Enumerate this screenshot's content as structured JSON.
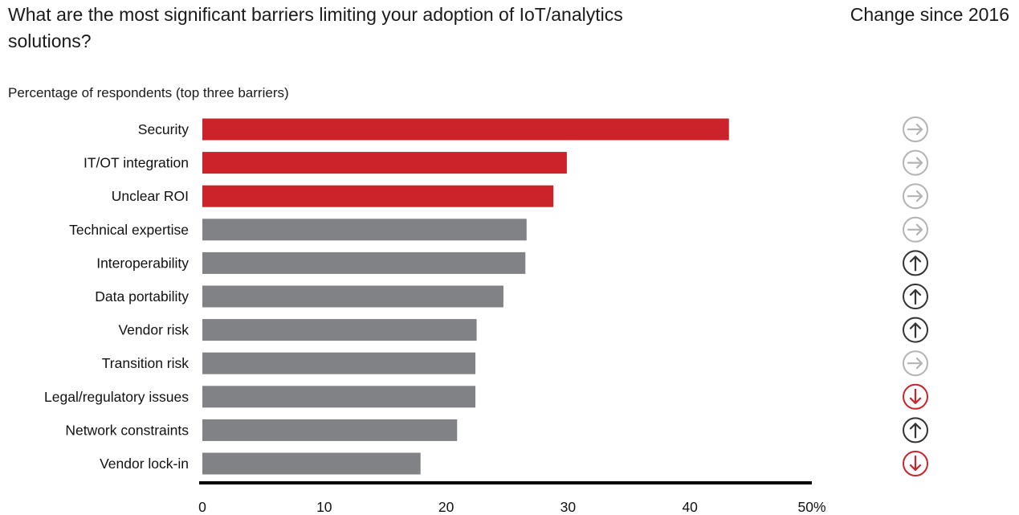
{
  "title": "What are the most significant barriers limiting your adoption of IoT/analytics solutions?",
  "change_title": "Change since 2016",
  "subtitle": "Percentage of respondents (top three barriers)",
  "colors": {
    "highlight": "#cc2229",
    "default": "#808285",
    "axis": "#000000",
    "icon_neutral": "#b3b3b3",
    "icon_up": "#333333",
    "icon_down": "#cc2229"
  },
  "chart_data": {
    "type": "bar",
    "orientation": "horizontal",
    "categories": [
      "Security",
      "IT/OT integration",
      "Unclear ROI",
      "Technical expertise",
      "Interoperability",
      "Data portability",
      "Vendor risk",
      "Transition risk",
      "Legal/regulatory issues",
      "Network constraints",
      "Vendor lock-in"
    ],
    "values": [
      43.2,
      29.9,
      28.8,
      26.6,
      26.5,
      24.7,
      22.5,
      22.4,
      22.4,
      20.9,
      17.9
    ],
    "highlighted": [
      true,
      true,
      true,
      false,
      false,
      false,
      false,
      false,
      false,
      false,
      false
    ],
    "change": [
      "same",
      "same",
      "same",
      "same",
      "up",
      "up",
      "up",
      "same",
      "down",
      "up",
      "down"
    ],
    "xlim": [
      0,
      50
    ],
    "xticks": [
      "0",
      "10",
      "20",
      "30",
      "40",
      "50%"
    ],
    "grid": false,
    "legend": "none"
  }
}
